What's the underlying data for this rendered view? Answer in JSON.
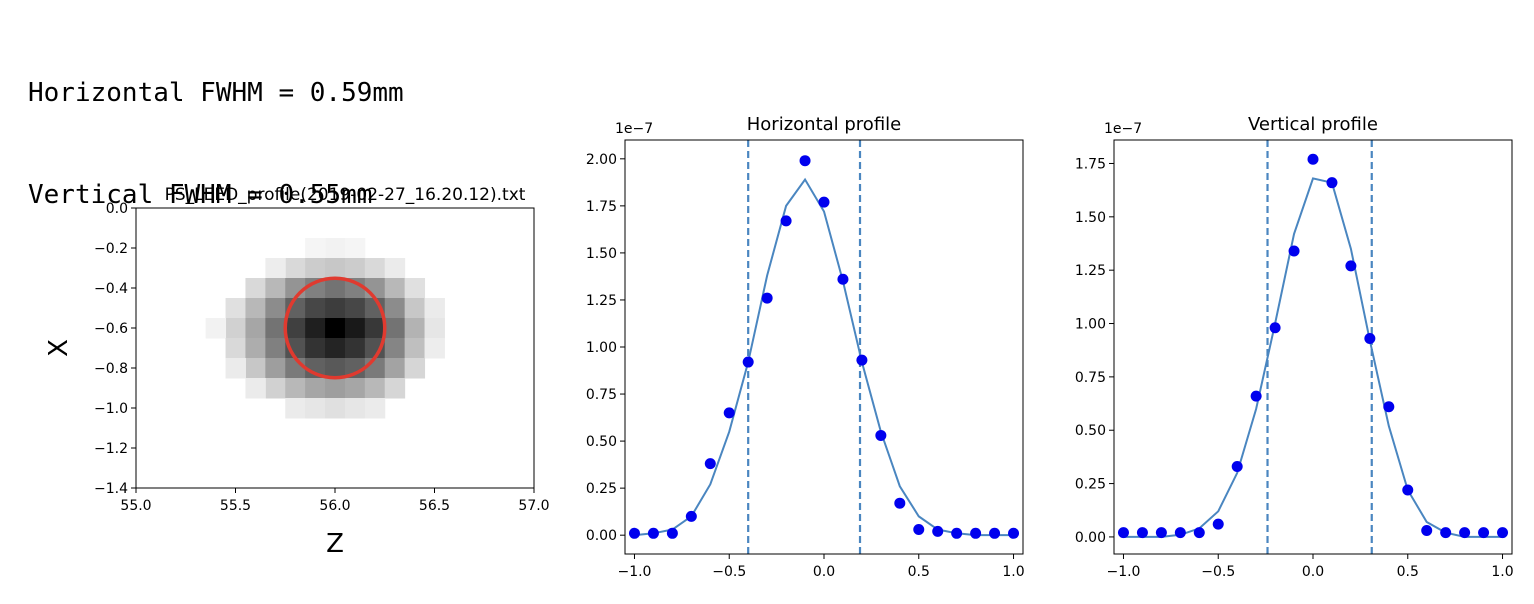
{
  "output": {
    "line1": "Horizontal FWHM = 0.59mm",
    "line2": "Vertical FWHM = 0.55mm"
  },
  "chart_data": [
    {
      "type": "heatmap",
      "title": "PS_LEED_profile(2019-02-27_16.20.12).txt",
      "xlabel": "Z",
      "ylabel": "X",
      "xlim": [
        55.0,
        57.0
      ],
      "ylim": [
        -1.4,
        0.0
      ],
      "xticks": [
        "55.0",
        "55.5",
        "56.0",
        "56.5",
        "57.0"
      ],
      "yticks": [
        "0.0",
        "−0.2",
        "−0.4",
        "−0.6",
        "−0.8",
        "−1.0",
        "−1.2",
        "−1.4"
      ],
      "cell_size": 0.1,
      "colormap": "gray_r",
      "cells": [
        {
          "z": 56.0,
          "x": -0.2,
          "v": 0.05
        },
        {
          "z": 56.1,
          "x": -0.2,
          "v": 0.04
        },
        {
          "z": 55.9,
          "x": -0.2,
          "v": 0.04
        },
        {
          "z": 55.8,
          "x": -0.3,
          "v": 0.15
        },
        {
          "z": 55.9,
          "x": -0.3,
          "v": 0.2
        },
        {
          "z": 56.0,
          "x": -0.3,
          "v": 0.22
        },
        {
          "z": 56.1,
          "x": -0.3,
          "v": 0.2
        },
        {
          "z": 56.2,
          "x": -0.3,
          "v": 0.15
        },
        {
          "z": 56.3,
          "x": -0.3,
          "v": 0.08
        },
        {
          "z": 55.7,
          "x": -0.3,
          "v": 0.07
        },
        {
          "z": 55.6,
          "x": -0.4,
          "v": 0.15
        },
        {
          "z": 55.7,
          "x": -0.4,
          "v": 0.28
        },
        {
          "z": 55.8,
          "x": -0.4,
          "v": 0.42
        },
        {
          "z": 55.9,
          "x": -0.4,
          "v": 0.5
        },
        {
          "z": 56.0,
          "x": -0.4,
          "v": 0.55
        },
        {
          "z": 56.1,
          "x": -0.4,
          "v": 0.5
        },
        {
          "z": 56.2,
          "x": -0.4,
          "v": 0.42
        },
        {
          "z": 56.3,
          "x": -0.4,
          "v": 0.28
        },
        {
          "z": 56.4,
          "x": -0.4,
          "v": 0.12
        },
        {
          "z": 55.5,
          "x": -0.5,
          "v": 0.12
        },
        {
          "z": 55.6,
          "x": -0.5,
          "v": 0.28
        },
        {
          "z": 55.7,
          "x": -0.5,
          "v": 0.45
        },
        {
          "z": 55.8,
          "x": -0.5,
          "v": 0.62
        },
        {
          "z": 55.9,
          "x": -0.5,
          "v": 0.72
        },
        {
          "z": 56.0,
          "x": -0.5,
          "v": 0.76
        },
        {
          "z": 56.1,
          "x": -0.5,
          "v": 0.72
        },
        {
          "z": 56.2,
          "x": -0.5,
          "v": 0.62
        },
        {
          "z": 56.3,
          "x": -0.5,
          "v": 0.45
        },
        {
          "z": 56.4,
          "x": -0.5,
          "v": 0.22
        },
        {
          "z": 56.5,
          "x": -0.5,
          "v": 0.08
        },
        {
          "z": 55.5,
          "x": -0.6,
          "v": 0.18
        },
        {
          "z": 55.6,
          "x": -0.6,
          "v": 0.35
        },
        {
          "z": 55.7,
          "x": -0.6,
          "v": 0.55
        },
        {
          "z": 55.8,
          "x": -0.6,
          "v": 0.75
        },
        {
          "z": 55.9,
          "x": -0.6,
          "v": 0.88
        },
        {
          "z": 56.0,
          "x": -0.6,
          "v": 1.0
        },
        {
          "z": 56.1,
          "x": -0.6,
          "v": 0.9
        },
        {
          "z": 56.2,
          "x": -0.6,
          "v": 0.78
        },
        {
          "z": 56.3,
          "x": -0.6,
          "v": 0.55
        },
        {
          "z": 56.4,
          "x": -0.6,
          "v": 0.3
        },
        {
          "z": 56.5,
          "x": -0.6,
          "v": 0.1
        },
        {
          "z": 55.4,
          "x": -0.6,
          "v": 0.05
        },
        {
          "z": 55.5,
          "x": -0.7,
          "v": 0.15
        },
        {
          "z": 55.6,
          "x": -0.7,
          "v": 0.32
        },
        {
          "z": 55.7,
          "x": -0.7,
          "v": 0.5
        },
        {
          "z": 55.8,
          "x": -0.7,
          "v": 0.68
        },
        {
          "z": 55.9,
          "x": -0.7,
          "v": 0.8
        },
        {
          "z": 56.0,
          "x": -0.7,
          "v": 0.86
        },
        {
          "z": 56.1,
          "x": -0.7,
          "v": 0.8
        },
        {
          "z": 56.2,
          "x": -0.7,
          "v": 0.68
        },
        {
          "z": 56.3,
          "x": -0.7,
          "v": 0.48
        },
        {
          "z": 56.4,
          "x": -0.7,
          "v": 0.25
        },
        {
          "z": 56.5,
          "x": -0.7,
          "v": 0.07
        },
        {
          "z": 55.6,
          "x": -0.8,
          "v": 0.22
        },
        {
          "z": 55.7,
          "x": -0.8,
          "v": 0.38
        },
        {
          "z": 55.8,
          "x": -0.8,
          "v": 0.52
        },
        {
          "z": 55.9,
          "x": -0.8,
          "v": 0.62
        },
        {
          "z": 56.0,
          "x": -0.8,
          "v": 0.65
        },
        {
          "z": 56.1,
          "x": -0.8,
          "v": 0.62
        },
        {
          "z": 56.2,
          "x": -0.8,
          "v": 0.52
        },
        {
          "z": 56.3,
          "x": -0.8,
          "v": 0.36
        },
        {
          "z": 56.4,
          "x": -0.8,
          "v": 0.16
        },
        {
          "z": 55.5,
          "x": -0.8,
          "v": 0.08
        },
        {
          "z": 55.7,
          "x": -0.9,
          "v": 0.18
        },
        {
          "z": 55.8,
          "x": -0.9,
          "v": 0.28
        },
        {
          "z": 55.9,
          "x": -0.9,
          "v": 0.35
        },
        {
          "z": 56.0,
          "x": -0.9,
          "v": 0.38
        },
        {
          "z": 56.1,
          "x": -0.9,
          "v": 0.35
        },
        {
          "z": 56.2,
          "x": -0.9,
          "v": 0.28
        },
        {
          "z": 56.3,
          "x": -0.9,
          "v": 0.16
        },
        {
          "z": 55.6,
          "x": -0.9,
          "v": 0.08
        },
        {
          "z": 55.8,
          "x": -1.0,
          "v": 0.08
        },
        {
          "z": 55.9,
          "x": -1.0,
          "v": 0.1
        },
        {
          "z": 56.0,
          "x": -1.0,
          "v": 0.12
        },
        {
          "z": 56.1,
          "x": -1.0,
          "v": 0.1
        },
        {
          "z": 56.2,
          "x": -1.0,
          "v": 0.08
        }
      ],
      "circle": {
        "center_z": 56.0,
        "center_x": -0.6,
        "radius": 0.25,
        "color": "#e03a2f"
      }
    },
    {
      "type": "scatter",
      "title": "Horizontal profile",
      "offset_label": "1e−7",
      "xlim": [
        -1.05,
        1.05
      ],
      "ylim": [
        -0.1,
        2.1
      ],
      "xticks": [
        "−1.0",
        "−0.5",
        "0.0",
        "0.5",
        "1.0"
      ],
      "yticks": [
        "0.00",
        "0.25",
        "0.50",
        "0.75",
        "1.00",
        "1.25",
        "1.50",
        "1.75",
        "2.00"
      ],
      "points": {
        "x": [
          -1.0,
          -0.9,
          -0.8,
          -0.7,
          -0.6,
          -0.5,
          -0.4,
          -0.3,
          -0.2,
          -0.1,
          0.0,
          0.1,
          0.2,
          0.3,
          0.4,
          0.5,
          0.6,
          0.7,
          0.8,
          0.9,
          1.0
        ],
        "y": [
          0.01,
          0.01,
          0.01,
          0.1,
          0.38,
          0.65,
          0.92,
          1.26,
          1.67,
          1.99,
          1.77,
          1.36,
          0.93,
          0.53,
          0.17,
          0.03,
          0.02,
          0.01,
          0.01,
          0.01,
          0.01
        ],
        "color": "#0000ee"
      },
      "fit": {
        "x": [
          -1.0,
          -0.9,
          -0.8,
          -0.7,
          -0.6,
          -0.5,
          -0.4,
          -0.3,
          -0.2,
          -0.1,
          0.0,
          0.1,
          0.2,
          0.3,
          0.4,
          0.5,
          0.6,
          0.7,
          0.8,
          0.9,
          1.0
        ],
        "y": [
          0.0,
          0.01,
          0.03,
          0.1,
          0.27,
          0.55,
          0.92,
          1.38,
          1.75,
          1.89,
          1.72,
          1.35,
          0.92,
          0.55,
          0.26,
          0.1,
          0.03,
          0.01,
          0.0,
          0.0,
          0.0
        ],
        "color": "#4a86c0"
      },
      "vlines": [
        -0.4,
        0.19
      ]
    },
    {
      "type": "scatter",
      "title": "Vertical profile",
      "offset_label": "1e−7",
      "xlim": [
        -1.05,
        1.05
      ],
      "ylim": [
        -0.08,
        1.86
      ],
      "xticks": [
        "−1.0",
        "−0.5",
        "0.0",
        "0.5",
        "1.0"
      ],
      "yticks": [
        "0.00",
        "0.25",
        "0.50",
        "0.75",
        "1.00",
        "1.25",
        "1.50",
        "1.75"
      ],
      "points": {
        "x": [
          -1.0,
          -0.9,
          -0.8,
          -0.7,
          -0.6,
          -0.5,
          -0.4,
          -0.3,
          -0.2,
          -0.1,
          0.0,
          0.1,
          0.2,
          0.3,
          0.4,
          0.5,
          0.6,
          0.7,
          0.8,
          0.9,
          1.0
        ],
        "y": [
          0.02,
          0.02,
          0.02,
          0.02,
          0.02,
          0.06,
          0.33,
          0.66,
          0.98,
          1.34,
          1.77,
          1.66,
          1.27,
          0.93,
          0.61,
          0.22,
          0.03,
          0.02,
          0.02,
          0.02,
          0.02
        ],
        "color": "#0000ee"
      },
      "fit": {
        "x": [
          -1.0,
          -0.9,
          -0.8,
          -0.7,
          -0.6,
          -0.5,
          -0.4,
          -0.3,
          -0.2,
          -0.1,
          0.0,
          0.1,
          0.2,
          0.3,
          0.4,
          0.5,
          0.6,
          0.7,
          0.8,
          0.9,
          1.0
        ],
        "y": [
          0.0,
          0.0,
          0.0,
          0.01,
          0.04,
          0.12,
          0.3,
          0.6,
          1.0,
          1.42,
          1.68,
          1.66,
          1.35,
          0.92,
          0.52,
          0.22,
          0.07,
          0.02,
          0.0,
          0.0,
          0.0
        ],
        "color": "#4a86c0"
      },
      "vlines": [
        -0.24,
        0.31
      ]
    }
  ]
}
